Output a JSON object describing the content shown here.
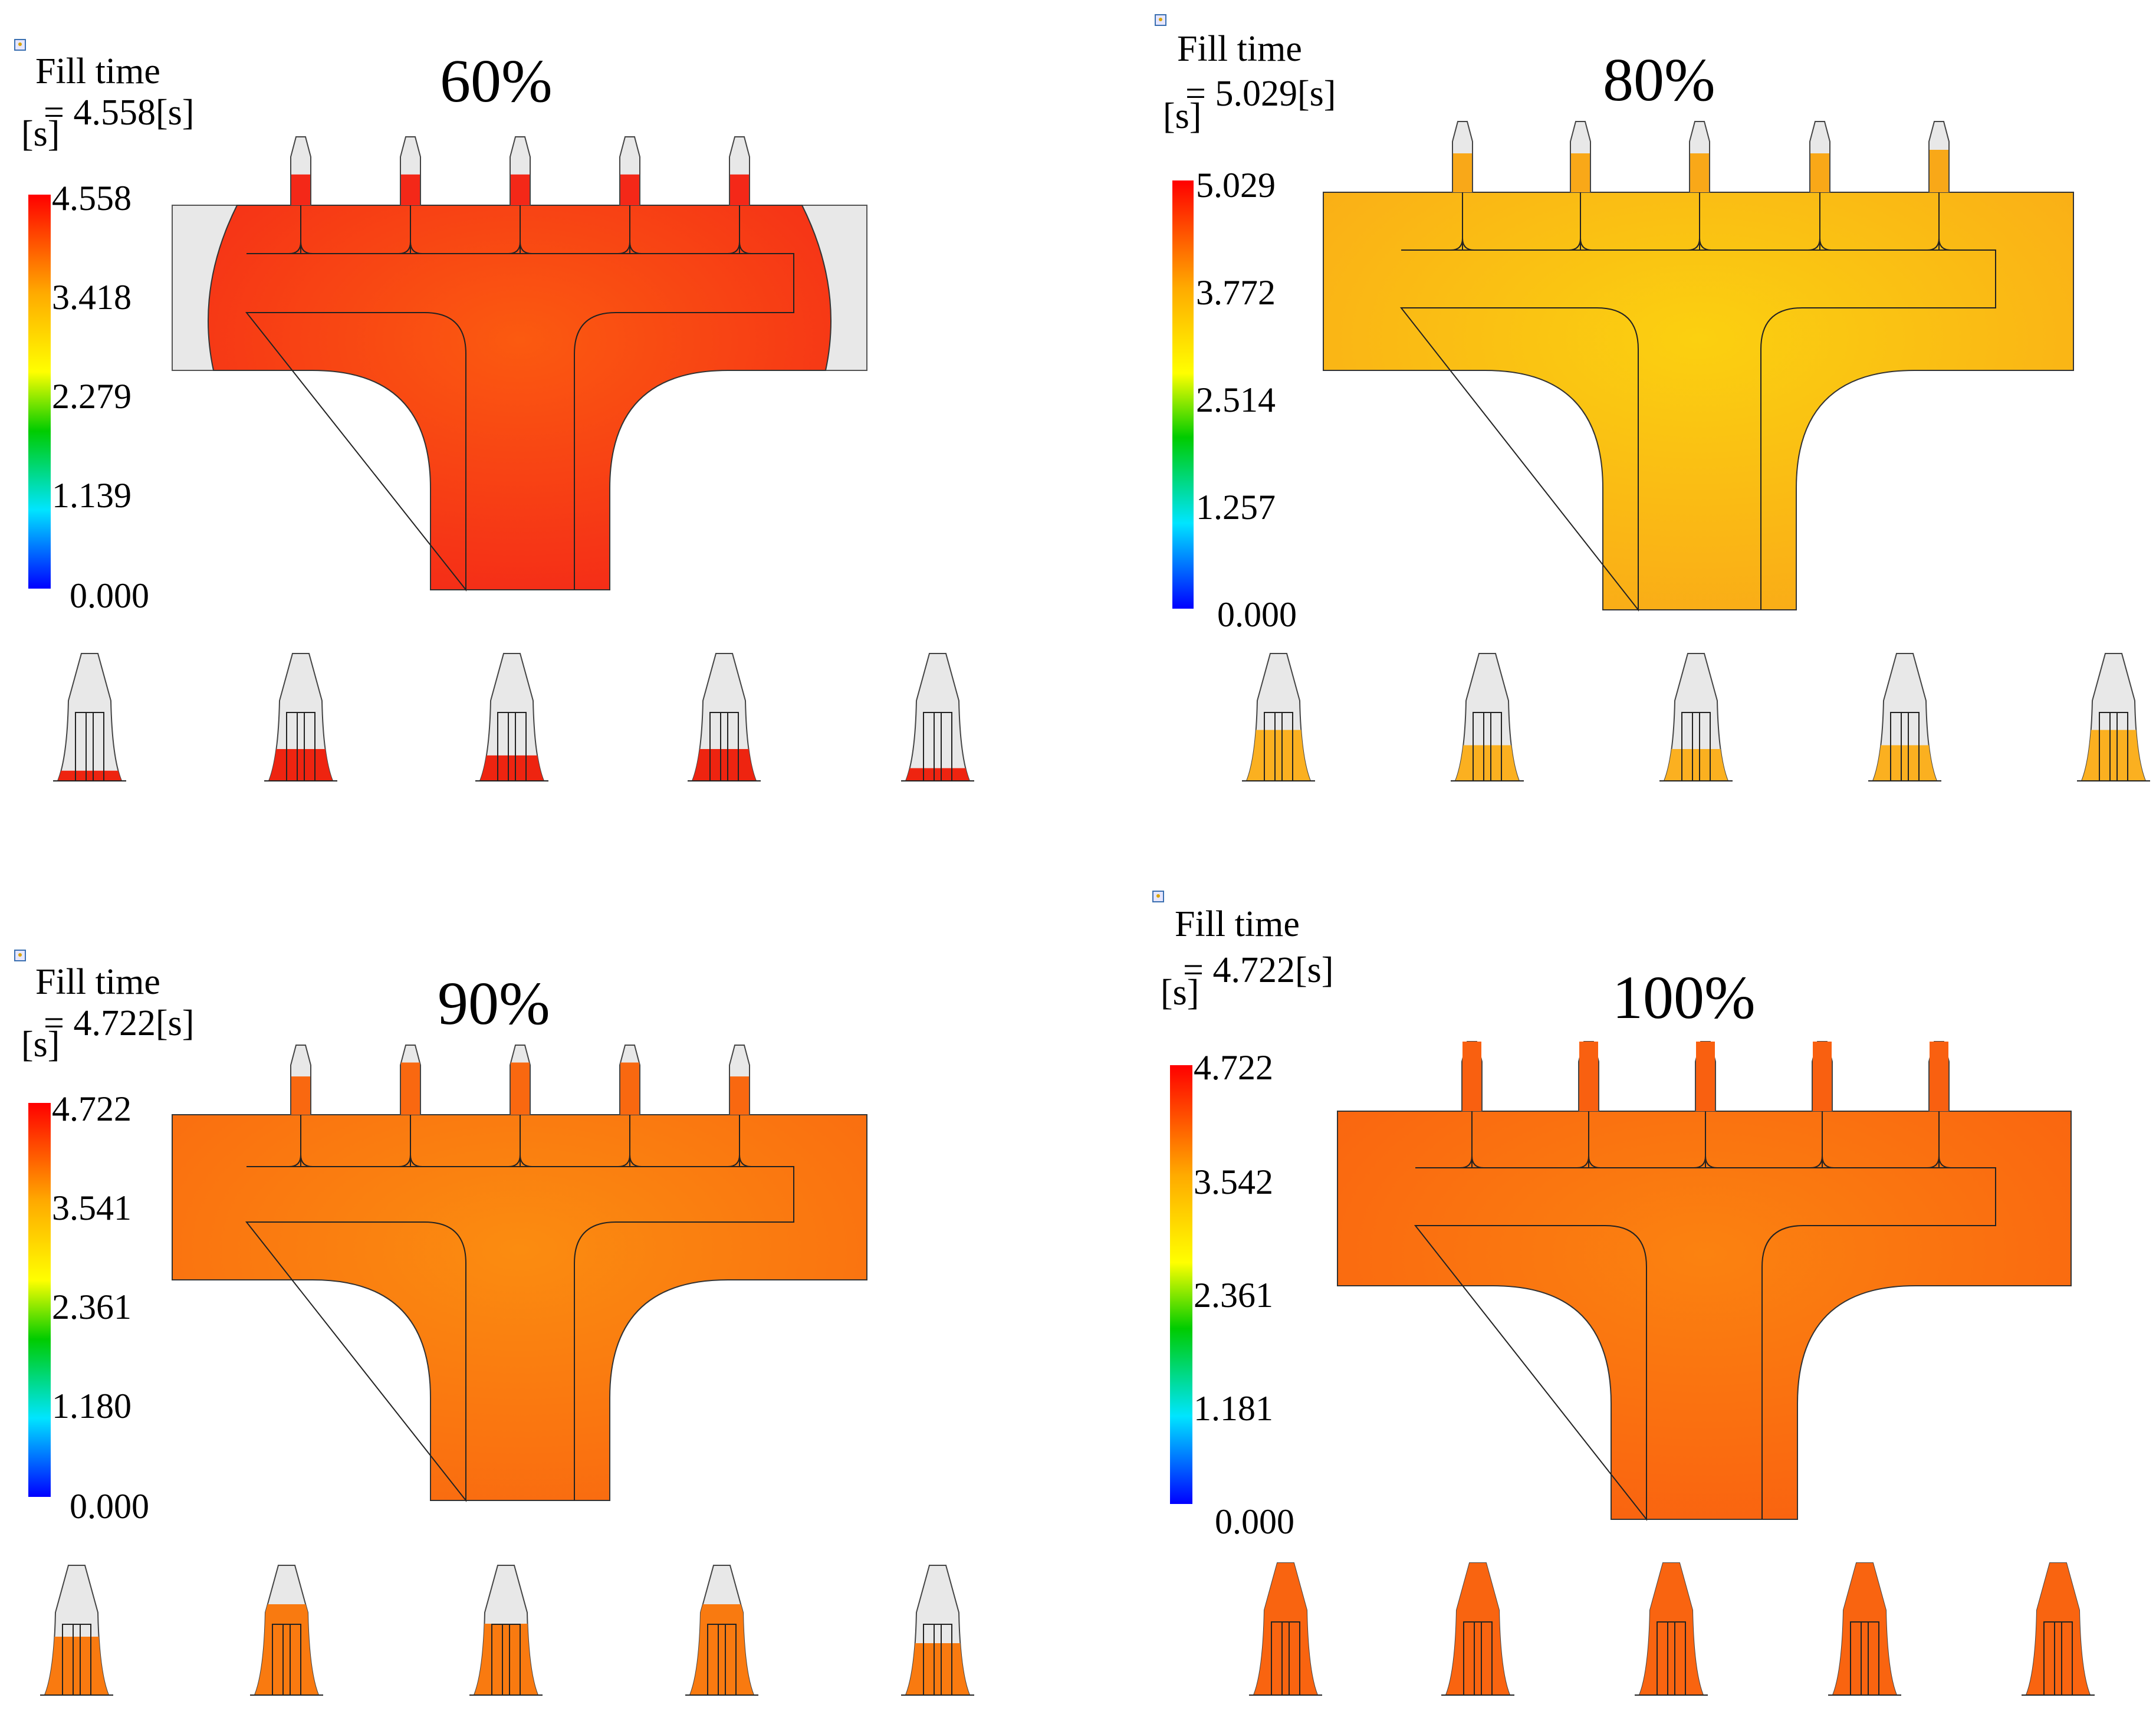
{
  "panels": [
    {
      "percent": "60%",
      "fill_label": "Fill time",
      "unit_label": "[s]",
      "value_label": "= 4.558[s]",
      "ticks": [
        "4.558",
        "3.418",
        "2.279",
        "1.139",
        "0.000"
      ],
      "colors": {
        "body": "#fb5a10",
        "rim": "#f42818",
        "bay": "#e8e8e8",
        "cavity": "#ee2410"
      },
      "gate_fill": [
        0.45,
        0.45,
        0.45,
        0.45,
        0.45
      ],
      "cavity_fill": [
        0.08,
        0.25,
        0.2,
        0.25,
        0.1
      ]
    },
    {
      "percent": "80%",
      "fill_label": "Fill time",
      "unit_label": "[s]",
      "value_label": "= 5.029[s]",
      "ticks": [
        "5.029",
        "3.772",
        "2.514",
        "1.257",
        "0.000"
      ],
      "colors": {
        "body": "#fbd010",
        "rim": "#f9a818",
        "bay": "#e8e8e8",
        "cavity": "#fbb020"
      },
      "gate_fill": [
        0.55,
        0.55,
        0.55,
        0.55,
        0.6
      ],
      "cavity_fill": [
        0.4,
        0.28,
        0.25,
        0.28,
        0.4
      ]
    },
    {
      "percent": "90%",
      "fill_label": "Fill time",
      "unit_label": "[s]",
      "value_label": "= 4.722[s]",
      "ticks": [
        "4.722",
        "3.541",
        "2.361",
        "1.180",
        "0.000"
      ],
      "colors": {
        "body": "#fb8c10",
        "rim": "#f96810",
        "bay": "#e8e8e8",
        "cavity": "#f97a10"
      },
      "gate_fill": [
        0.55,
        0.75,
        0.75,
        0.75,
        0.55
      ],
      "cavity_fill": [
        0.45,
        0.7,
        0.55,
        0.7,
        0.4
      ]
    },
    {
      "percent": "100%",
      "fill_label": "Fill time",
      "unit_label": "[s]",
      "value_label": "= 4.722[s]",
      "ticks": [
        "4.722",
        "3.542",
        "2.361",
        "1.181",
        "0.000"
      ],
      "colors": {
        "body": "#fb8210",
        "rim": "#f96010",
        "bay": "#e8e8e8",
        "cavity": "#f96410"
      },
      "gate_fill": [
        1,
        1,
        1,
        1,
        1
      ],
      "cavity_fill": [
        1,
        1,
        1,
        1,
        1
      ]
    }
  ]
}
